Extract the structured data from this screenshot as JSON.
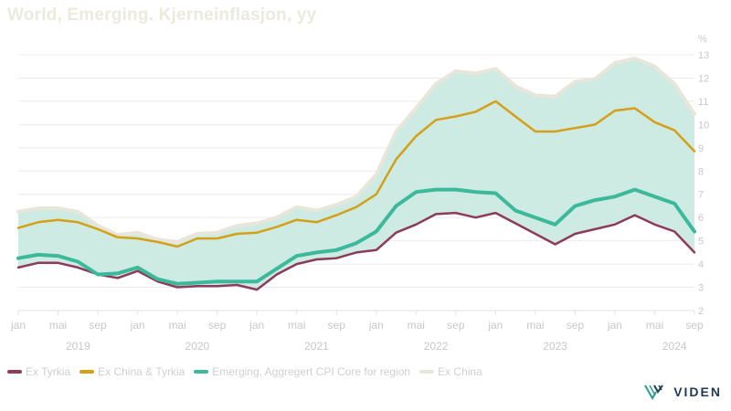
{
  "chart_data": {
    "type": "area",
    "title": "World, Emerging. Kjerneinflasjon, yy",
    "y_unit": "%",
    "ylim": [
      2,
      13
    ],
    "y_ticks": [
      "2",
      "3",
      "4",
      "5",
      "6",
      "7",
      "8",
      "9",
      "10",
      "11",
      "12",
      "13"
    ],
    "x_range": [
      "2019-01",
      "2024-09"
    ],
    "x_tick_labels": [
      {
        "date": "2019-01",
        "label": "jan"
      },
      {
        "date": "2019-05",
        "label": "mai"
      },
      {
        "date": "2019-09",
        "label": "sep"
      },
      {
        "date": "2020-01",
        "label": "jan"
      },
      {
        "date": "2020-05",
        "label": "mai"
      },
      {
        "date": "2020-09",
        "label": "sep"
      },
      {
        "date": "2021-01",
        "label": "jan"
      },
      {
        "date": "2021-05",
        "label": "mai"
      },
      {
        "date": "2021-09",
        "label": "sep"
      },
      {
        "date": "2022-01",
        "label": "jan"
      },
      {
        "date": "2022-05",
        "label": "mai"
      },
      {
        "date": "2022-09",
        "label": "sep"
      },
      {
        "date": "2023-01",
        "label": "jan"
      },
      {
        "date": "2023-05",
        "label": "mai"
      },
      {
        "date": "2023-09",
        "label": "sep"
      },
      {
        "date": "2024-01",
        "label": "jan"
      },
      {
        "date": "2024-05",
        "label": "mai"
      },
      {
        "date": "2024-09",
        "label": "sep"
      }
    ],
    "year_labels": [
      {
        "date": "2019-07",
        "label": "2019"
      },
      {
        "date": "2020-07",
        "label": "2020"
      },
      {
        "date": "2021-07",
        "label": "2021"
      },
      {
        "date": "2022-07",
        "label": "2022"
      },
      {
        "date": "2023-07",
        "label": "2023"
      },
      {
        "date": "2024-07",
        "label": "2024"
      }
    ],
    "grid": true,
    "legend_position": "bottom-left",
    "band": {
      "lower_series": "Ex Tyrkia",
      "upper_series": "Ex China",
      "color": "#cdebe2"
    },
    "series": [
      {
        "name": "Ex Tyrkia",
        "color": "#8e3a5a",
        "width": 2.5,
        "x": [
          "2019-01",
          "2019-03",
          "2019-05",
          "2019-07",
          "2019-09",
          "2019-11",
          "2020-01",
          "2020-03",
          "2020-05",
          "2020-07",
          "2020-09",
          "2020-11",
          "2021-01",
          "2021-03",
          "2021-05",
          "2021-07",
          "2021-09",
          "2021-11",
          "2022-01",
          "2022-03",
          "2022-05",
          "2022-07",
          "2022-09",
          "2022-11",
          "2023-01",
          "2023-03",
          "2023-05",
          "2023-07",
          "2023-09",
          "2023-11",
          "2024-01",
          "2024-03",
          "2024-05",
          "2024-07",
          "2024-09"
        ],
        "values": [
          3.85,
          4.05,
          4.05,
          3.85,
          3.55,
          3.4,
          3.7,
          3.25,
          3.0,
          3.05,
          3.05,
          3.1,
          2.9,
          3.55,
          4.0,
          4.2,
          4.25,
          4.5,
          4.6,
          5.35,
          5.7,
          6.15,
          6.2,
          6.0,
          6.2,
          5.75,
          5.3,
          4.85,
          5.3,
          5.5,
          5.7,
          6.1,
          5.7,
          5.4,
          4.5
        ]
      },
      {
        "name": "Ex China & Tyrkia",
        "color": "#d4a017",
        "width": 2.5,
        "x": [
          "2019-01",
          "2019-03",
          "2019-05",
          "2019-07",
          "2019-09",
          "2019-11",
          "2020-01",
          "2020-03",
          "2020-05",
          "2020-07",
          "2020-09",
          "2020-11",
          "2021-01",
          "2021-03",
          "2021-05",
          "2021-07",
          "2021-09",
          "2021-11",
          "2022-01",
          "2022-03",
          "2022-05",
          "2022-07",
          "2022-09",
          "2022-11",
          "2023-01",
          "2023-03",
          "2023-05",
          "2023-07",
          "2023-09",
          "2023-11",
          "2024-01",
          "2024-03",
          "2024-05",
          "2024-07",
          "2024-09"
        ],
        "values": [
          5.55,
          5.8,
          5.9,
          5.8,
          5.5,
          5.15,
          5.1,
          4.95,
          4.75,
          5.1,
          5.1,
          5.3,
          5.35,
          5.6,
          5.9,
          5.8,
          6.1,
          6.45,
          7.0,
          8.5,
          9.5,
          10.2,
          10.35,
          10.55,
          11.0,
          10.35,
          9.7,
          9.7,
          9.85,
          10.0,
          10.6,
          10.7,
          10.1,
          9.75,
          8.85
        ]
      },
      {
        "name": "Emerging, Aggregert CPI Core for region",
        "color": "#3cb89b",
        "width": 4,
        "x": [
          "2019-01",
          "2019-03",
          "2019-05",
          "2019-07",
          "2019-09",
          "2019-11",
          "2020-01",
          "2020-03",
          "2020-05",
          "2020-07",
          "2020-09",
          "2020-11",
          "2021-01",
          "2021-03",
          "2021-05",
          "2021-07",
          "2021-09",
          "2021-11",
          "2022-01",
          "2022-03",
          "2022-05",
          "2022-07",
          "2022-09",
          "2022-11",
          "2023-01",
          "2023-03",
          "2023-05",
          "2023-07",
          "2023-09",
          "2023-11",
          "2024-01",
          "2024-03",
          "2024-05",
          "2024-07",
          "2024-09"
        ],
        "values": [
          4.25,
          4.4,
          4.35,
          4.1,
          3.55,
          3.6,
          3.85,
          3.35,
          3.15,
          3.2,
          3.25,
          3.25,
          3.25,
          3.8,
          4.35,
          4.5,
          4.6,
          4.9,
          5.4,
          6.5,
          7.1,
          7.2,
          7.2,
          7.1,
          7.05,
          6.3,
          6.0,
          5.7,
          6.5,
          6.75,
          6.9,
          7.2,
          6.9,
          6.6,
          5.4
        ]
      },
      {
        "name": "Ex China",
        "color": "#e8e6da",
        "width": 4,
        "x": [
          "2019-01",
          "2019-03",
          "2019-05",
          "2019-07",
          "2019-09",
          "2019-11",
          "2020-01",
          "2020-03",
          "2020-05",
          "2020-07",
          "2020-09",
          "2020-11",
          "2021-01",
          "2021-03",
          "2021-05",
          "2021-07",
          "2021-09",
          "2021-11",
          "2022-01",
          "2022-03",
          "2022-05",
          "2022-07",
          "2022-09",
          "2022-11",
          "2023-01",
          "2023-03",
          "2023-05",
          "2023-07",
          "2023-09",
          "2023-11",
          "2024-01",
          "2024-03",
          "2024-05",
          "2024-07",
          "2024-09"
        ],
        "values": [
          6.25,
          6.4,
          6.4,
          6.25,
          5.65,
          5.25,
          5.35,
          5.05,
          4.95,
          5.3,
          5.35,
          5.65,
          5.75,
          6.0,
          6.45,
          6.3,
          6.55,
          6.9,
          7.85,
          9.7,
          10.7,
          11.75,
          12.3,
          12.2,
          12.4,
          11.65,
          11.25,
          11.2,
          11.85,
          11.95,
          12.65,
          12.85,
          12.5,
          11.75,
          10.45
        ]
      }
    ]
  },
  "legend": {
    "items": [
      {
        "label": "Ex Tyrkia",
        "color": "#8e3a5a"
      },
      {
        "label": "Ex China & Tyrkia",
        "color": "#d4a017"
      },
      {
        "label": "Emerging, Aggregert CPI Core for region",
        "color": "#3cb89b"
      },
      {
        "label": "Ex China",
        "color": "#e8e6da"
      }
    ]
  },
  "brand": {
    "name": "VIDEN",
    "color": "#1f3b55"
  }
}
